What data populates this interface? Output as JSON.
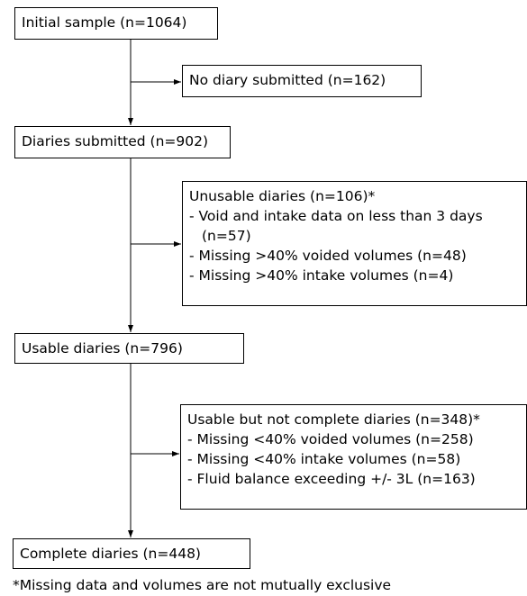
{
  "nodes": [
    {
      "label": "Initial sample (n=1064)"
    },
    {
      "label": "No diary submitted (n=162)"
    },
    {
      "label": "Diaries submitted (n=902)"
    },
    {
      "label": "Unusable diaries (n=106)*",
      "items": [
        "- Void and intake data on less than 3 days (n=57)",
        "- Missing >40% voided volumes (n=48)",
        "- Missing >40% intake volumes (n=4)"
      ]
    },
    {
      "label": "Usable diaries (n=796)"
    },
    {
      "label": "Usable but not complete diaries (n=348)*",
      "items": [
        "- Missing <40% voided volumes (n=258)",
        "- Missing <40% intake volumes (n=58)",
        "- Fluid balance exceeding +/- 3L (n=163)"
      ]
    },
    {
      "label": "Complete diaries (n=448)"
    }
  ],
  "footnote": "*Missing data and volumes are not mutually exclusive"
}
